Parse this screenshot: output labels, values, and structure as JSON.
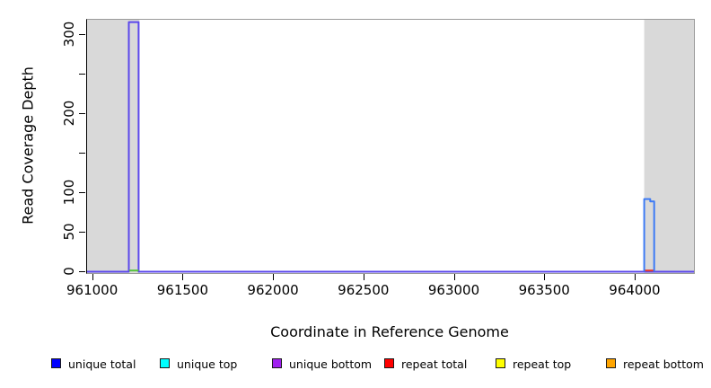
{
  "chart_data": {
    "type": "line",
    "title": "",
    "xlabel": "Coordinate in Reference Genome",
    "ylabel": "Read Coverage Depth",
    "xlim": [
      960967,
      964323
    ],
    "ylim": [
      0,
      319
    ],
    "grid": false,
    "legend_position": "bottom",
    "x_ticks": [
      961000,
      961500,
      962000,
      962500,
      963000,
      963500,
      964000
    ],
    "y_ticks": [
      0,
      50,
      100,
      150,
      200,
      250,
      300
    ],
    "y_tick_labeled_values": [
      0,
      50,
      100,
      200,
      300
    ],
    "shaded_regions": [
      {
        "x0": 960967,
        "x1": 961257,
        "color": "#d9d9d9"
      },
      {
        "x0": 964048,
        "x1": 964323,
        "color": "#d9d9d9"
      }
    ],
    "series": [
      {
        "name": "unique bottom + unique total baseline",
        "drawn_color": "#5c48ec",
        "stroke_width": 2,
        "points": [
          [
            960967,
            0
          ],
          [
            961198,
            0
          ],
          [
            961198,
            316
          ],
          [
            961252,
            316
          ],
          [
            961252,
            0
          ],
          [
            964323,
            0
          ]
        ]
      },
      {
        "name": "repeat top segment at left spike base (renders green over baseline)",
        "drawn_color": "#55c43c",
        "stroke_width": 2,
        "points": [
          [
            961200,
            1.5
          ],
          [
            961252,
            1.5
          ]
        ]
      },
      {
        "name": "repeat total segment at right spike base",
        "drawn_color": "#e8352b",
        "stroke_width": 2,
        "points": [
          [
            964048,
            1.5
          ],
          [
            964103,
            1.5
          ]
        ]
      },
      {
        "name": "unique top + unique total right spike",
        "drawn_color": "#3e7bf5",
        "stroke_width": 2,
        "points": [
          [
            964048,
            0
          ],
          [
            964048,
            92
          ],
          [
            964081,
            92
          ],
          [
            964081,
            89
          ],
          [
            964103,
            89
          ],
          [
            964103,
            0
          ]
        ]
      }
    ],
    "legend": [
      {
        "label": "unique total",
        "color": "#0000ff"
      },
      {
        "label": "unique top",
        "color": "#00ffff"
      },
      {
        "label": "unique bottom",
        "color": "#a020f0"
      },
      {
        "label": "repeat total",
        "color": "#ff0000"
      },
      {
        "label": "repeat top",
        "color": "#ffff00"
      },
      {
        "label": "repeat bottom",
        "color": "#ffa500"
      }
    ]
  }
}
